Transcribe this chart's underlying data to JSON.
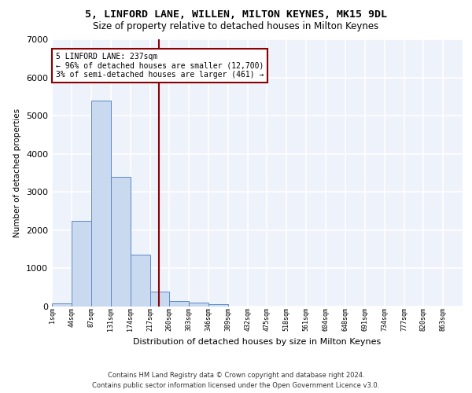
{
  "title_line1": "5, LINFORD LANE, WILLEN, MILTON KEYNES, MK15 9DL",
  "title_line2": "Size of property relative to detached houses in Milton Keynes",
  "xlabel": "Distribution of detached houses by size in Milton Keynes",
  "ylabel": "Number of detached properties",
  "footer_line1": "Contains HM Land Registry data © Crown copyright and database right 2024.",
  "footer_line2": "Contains public sector information licensed under the Open Government Licence v3.0.",
  "bar_edges": [
    1,
    44,
    87,
    131,
    174,
    217,
    260,
    303,
    346,
    389,
    432,
    475,
    518,
    561,
    604,
    648,
    691,
    734,
    777,
    820,
    863
  ],
  "bar_heights": [
    75,
    2250,
    5400,
    3400,
    1350,
    400,
    150,
    110,
    70,
    0,
    0,
    0,
    0,
    0,
    0,
    0,
    0,
    0,
    0,
    0
  ],
  "bar_color": "#c9d9f0",
  "bar_edgecolor": "#5a8ac6",
  "property_size": 237,
  "annotation_text": "5 LINFORD LANE: 237sqm\n← 96% of detached houses are smaller (12,700)\n3% of semi-detached houses are larger (461) →",
  "vline_color": "#8b0000",
  "annotation_box_edgecolor": "#8b0000",
  "bg_color": "#eef2fb",
  "grid_color": "#ffffff",
  "ylim": [
    0,
    7000
  ],
  "tick_labels": [
    "1sqm",
    "44sqm",
    "87sqm",
    "131sqm",
    "174sqm",
    "217sqm",
    "260sqm",
    "303sqm",
    "346sqm",
    "389sqm",
    "432sqm",
    "475sqm",
    "518sqm",
    "561sqm",
    "604sqm",
    "648sqm",
    "691sqm",
    "734sqm",
    "777sqm",
    "820sqm",
    "863sqm"
  ]
}
